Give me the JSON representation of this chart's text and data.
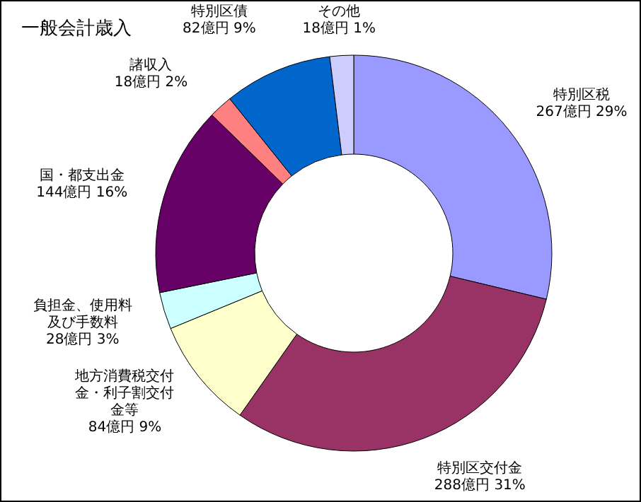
{
  "chart_data": {
    "type": "donut",
    "title": "一般会計歳入",
    "categories": [
      "特別区税",
      "特別区交付金",
      "地方消費税交付金・利子割交付金等",
      "負担金、使用料及び手数料",
      "国・都支出金",
      "諸収入",
      "特別区債",
      "その他"
    ],
    "values": [
      267,
      288,
      84,
      28,
      144,
      18,
      82,
      18
    ],
    "value_labels": [
      "267億円 29%",
      "288億円 31%",
      "84億円 9%",
      "28億円 3%",
      "144億円 16%",
      "18億円 2%",
      "82億円 9%",
      "18億円 1%"
    ],
    "colors": [
      "#9999ff",
      "#993366",
      "#ffffcc",
      "#ccffff",
      "#660066",
      "#ff8080",
      "#0066cc",
      "#ccccff"
    ]
  }
}
